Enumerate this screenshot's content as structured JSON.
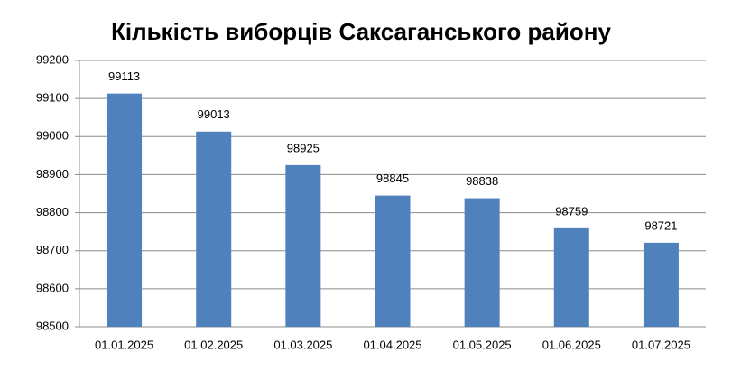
{
  "chart_data": {
    "type": "bar",
    "title": "Кількість виборців Саксаганського району",
    "categories": [
      "01.01.2025",
      "01.02.2025",
      "01.03.2025",
      "01.04.2025",
      "01.05.2025",
      "01.06.2025",
      "01.07.2025"
    ],
    "values": [
      99113,
      99013,
      98925,
      98845,
      98838,
      98759,
      98721
    ],
    "color": "#4f81bd",
    "ylim": [
      98500,
      99200
    ],
    "yticks": [
      98500,
      98600,
      98700,
      98800,
      98900,
      99000,
      99100,
      99200
    ],
    "grid": true
  }
}
